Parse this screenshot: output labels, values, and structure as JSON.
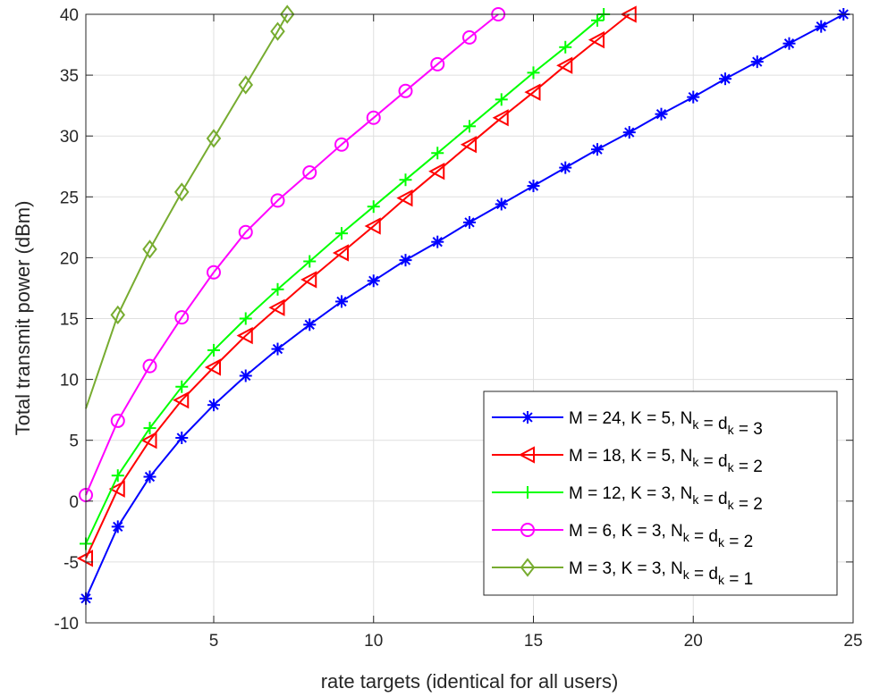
{
  "chart_data": {
    "type": "line",
    "title": "",
    "xlabel": "rate targets (identical for all users)",
    "ylabel": "Total transmit power (dBm)",
    "xlim": [
      1,
      25
    ],
    "ylim": [
      -10,
      40
    ],
    "xticks": [
      5,
      10,
      15,
      20,
      25
    ],
    "yticks": [
      -10,
      -5,
      0,
      5,
      10,
      15,
      20,
      25,
      30,
      35,
      40
    ],
    "grid": true,
    "legend_position": "bottom-right",
    "series": [
      {
        "legend": {
          "prefix": "M = 24, K = 5, N",
          "sub1": "k",
          "mid": " = d",
          "sub2": "k",
          "suffix": " = 3"
        },
        "color": "#0000ff",
        "marker": "asterisk",
        "x": [
          1,
          2,
          3,
          4,
          5,
          6,
          7,
          8,
          9,
          10,
          11,
          12,
          13,
          14,
          15,
          16,
          17,
          18,
          19,
          20,
          21,
          22,
          23,
          24,
          24.7
        ],
        "y": [
          -8.0,
          -2.1,
          2.0,
          5.2,
          7.9,
          10.3,
          12.5,
          14.5,
          16.4,
          18.1,
          19.8,
          21.3,
          22.9,
          24.4,
          25.9,
          27.4,
          28.9,
          30.3,
          31.8,
          33.2,
          34.7,
          36.1,
          37.6,
          39.0,
          40.0
        ]
      },
      {
        "legend": {
          "prefix": "M = 18, K = 5, N",
          "sub1": "k",
          "mid": " = d",
          "sub2": "k",
          "suffix": " = 2"
        },
        "color": "#ff0000",
        "marker": "triangle-left",
        "x": [
          1,
          2,
          3,
          4,
          5,
          6,
          7,
          8,
          9,
          10,
          11,
          12,
          13,
          14,
          15,
          16,
          17,
          18
        ],
        "y": [
          -4.7,
          1.0,
          5.0,
          8.3,
          11.0,
          13.6,
          15.9,
          18.2,
          20.4,
          22.6,
          24.9,
          27.1,
          29.3,
          31.5,
          33.6,
          35.8,
          37.9,
          40.0
        ]
      },
      {
        "legend": {
          "prefix": "M = 12, K = 3, N",
          "sub1": "k",
          "mid": " = d",
          "sub2": "k",
          "suffix": " = 2"
        },
        "color": "#00ff00",
        "marker": "plus",
        "x": [
          1,
          2,
          3,
          4,
          5,
          6,
          7,
          8,
          9,
          10,
          11,
          12,
          13,
          14,
          15,
          16,
          17,
          17.2
        ],
        "y": [
          -3.5,
          2.1,
          6.0,
          9.4,
          12.4,
          15.0,
          17.4,
          19.7,
          22.0,
          24.2,
          26.4,
          28.6,
          30.8,
          33.0,
          35.2,
          37.3,
          39.5,
          40.0
        ]
      },
      {
        "legend": {
          "prefix": "M = 6, K = 3, N",
          "sub1": "k",
          "mid": " = d",
          "sub2": "k",
          "suffix": " = 2"
        },
        "color": "#ff00ff",
        "marker": "circle",
        "x": [
          1,
          2,
          3,
          4,
          5,
          6,
          7,
          8,
          9,
          10,
          11,
          12,
          13,
          13.9
        ],
        "y": [
          0.5,
          6.6,
          11.1,
          15.1,
          18.8,
          22.1,
          24.7,
          27.0,
          29.3,
          31.5,
          33.7,
          35.9,
          38.1,
          40.0
        ]
      },
      {
        "legend": {
          "prefix": "M = 3, K = 3, N",
          "sub1": "k",
          "mid": " = d",
          "sub2": "k",
          "suffix": " = 1"
        },
        "color": "#77ac30",
        "marker": "diamond",
        "x": [
          1,
          2,
          3,
          4,
          5,
          6,
          7,
          7.3
        ],
        "y": [
          7.6,
          15.3,
          20.7,
          25.4,
          29.8,
          34.2,
          38.6,
          40.0
        ],
        "marker_x": [
          2,
          3,
          4,
          5,
          6,
          7,
          7.3
        ]
      }
    ]
  }
}
